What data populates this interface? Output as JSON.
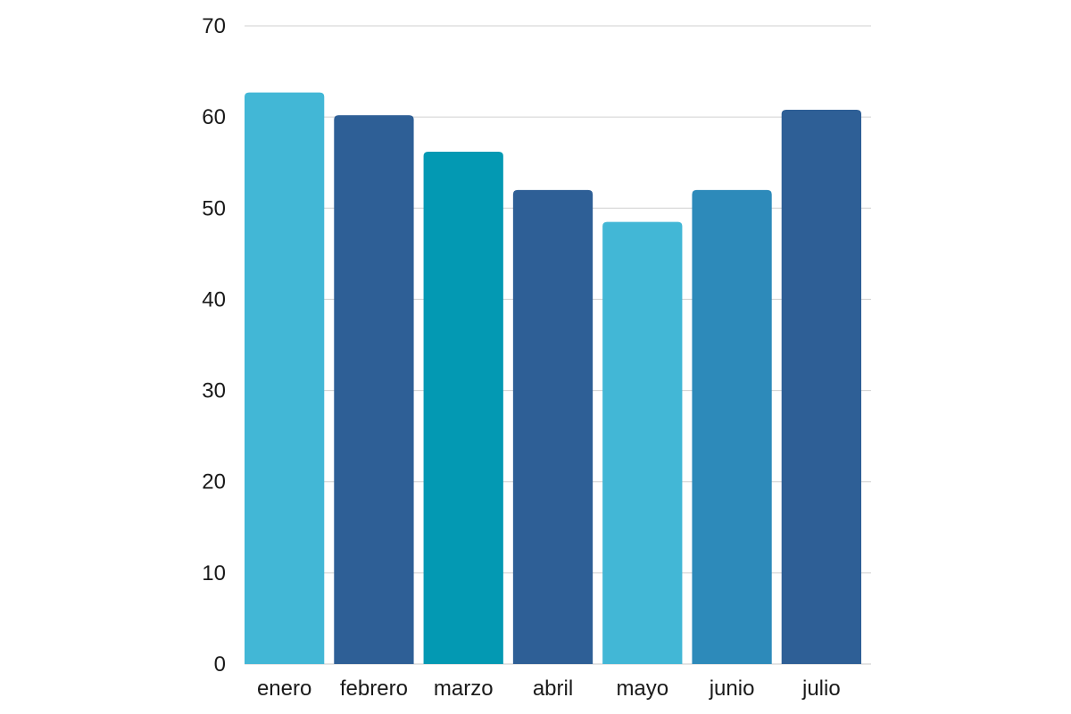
{
  "chart_data": {
    "type": "bar",
    "title": "",
    "xlabel": "",
    "ylabel": "",
    "categories": [
      "enero",
      "febrero",
      "marzo",
      "abril",
      "mayo",
      "junio",
      "julio"
    ],
    "values": [
      62.7,
      60.2,
      56.2,
      52.0,
      48.5,
      52.0,
      60.8
    ],
    "colors": [
      "#42b7d6",
      "#2e5f96",
      "#0399b3",
      "#2e5f96",
      "#42b7d6",
      "#2d8aba",
      "#2e5f96"
    ],
    "ylim": [
      0,
      70
    ],
    "yticks": [
      0,
      10,
      20,
      30,
      40,
      50,
      60,
      70
    ],
    "grid": true,
    "legend": "none"
  }
}
